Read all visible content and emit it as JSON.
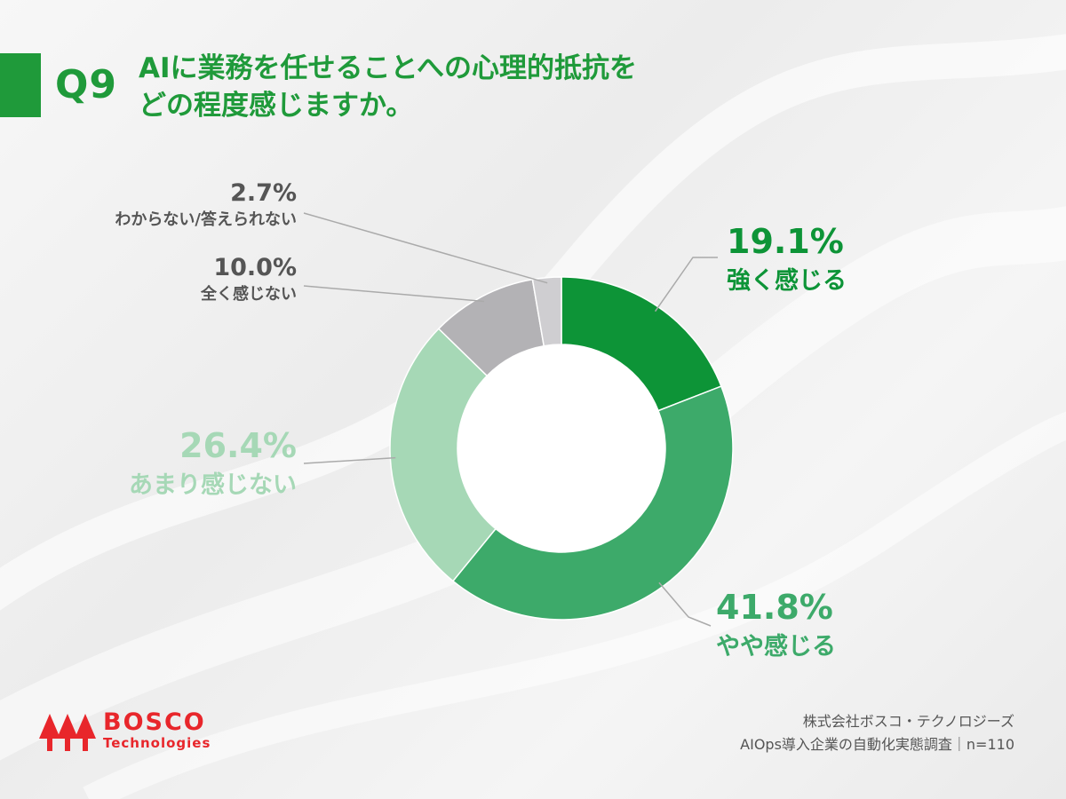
{
  "header": {
    "q_number": "Q9",
    "title_line1": "AIに業務を任せることへの心理的抵抗を",
    "title_line2": "どの程度感じますか。"
  },
  "chart_data": {
    "type": "pie",
    "donut": true,
    "title": "AIに業務を任せることへの心理的抵抗をどの程度感じますか。",
    "categories": [
      "強く感じる",
      "やや感じる",
      "あまり感じない",
      "全く感じない",
      "わからない/答えられない"
    ],
    "values": [
      19.1,
      41.8,
      26.4,
      10.0,
      2.7
    ],
    "labels": [
      "19.1%",
      "41.8%",
      "26.4%",
      "10.0%",
      "2.7%"
    ],
    "colors": [
      "#0d9437",
      "#3daa6a",
      "#a6d8b6",
      "#b3b2b5",
      "#cfced1"
    ],
    "label_colors": [
      "#0d9437",
      "#3daa6a",
      "#a6d8b6",
      "#555555",
      "#555555"
    ]
  },
  "logo": {
    "line1": "BOSCO",
    "line2": "Technologies",
    "color": "#e8262b"
  },
  "footer": {
    "line1": "株式会社ボスコ・テクノロジーズ",
    "line2": "AIOps導入企業の自動化実態調査｜n=110"
  }
}
